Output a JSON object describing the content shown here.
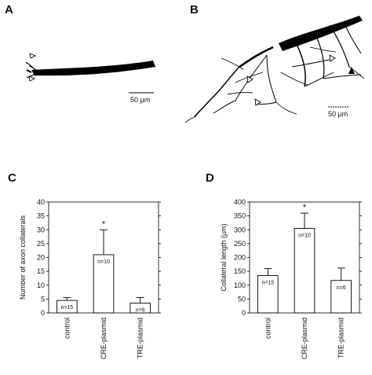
{
  "panels": {
    "a": {
      "letter": "A",
      "scale_label": "50 µm"
    },
    "b": {
      "letter": "B",
      "scale_label": "50 µm"
    },
    "c": {
      "letter": "C"
    },
    "d": {
      "letter": "D"
    }
  },
  "chart_data": [
    {
      "type": "bar",
      "panel": "C",
      "ylabel": "Number of axon collaterals",
      "ylim": [
        0,
        40
      ],
      "yticks": [
        0,
        5,
        10,
        15,
        20,
        25,
        30,
        35,
        40
      ],
      "categories": [
        "control",
        "CRE-plasmid",
        "TRE-plasmid"
      ],
      "values": [
        4.5,
        21,
        3.5
      ],
      "errors": [
        1,
        9,
        2
      ],
      "n_labels": [
        "n=15",
        "n=10",
        "n=6"
      ],
      "significance": [
        "",
        "*",
        ""
      ]
    },
    {
      "type": "bar",
      "panel": "D",
      "ylabel": "Collateral length (µm)",
      "ylim": [
        0,
        400
      ],
      "yticks": [
        0,
        50,
        100,
        150,
        200,
        250,
        300,
        350,
        400
      ],
      "categories": [
        "control",
        "CRE-plasmid",
        "TRE-plasmid"
      ],
      "values": [
        135,
        305,
        117
      ],
      "errors": [
        25,
        55,
        45
      ],
      "n_labels": [
        "n=15",
        "n=10",
        "n=6"
      ],
      "significance": [
        "",
        "*",
        ""
      ]
    }
  ]
}
